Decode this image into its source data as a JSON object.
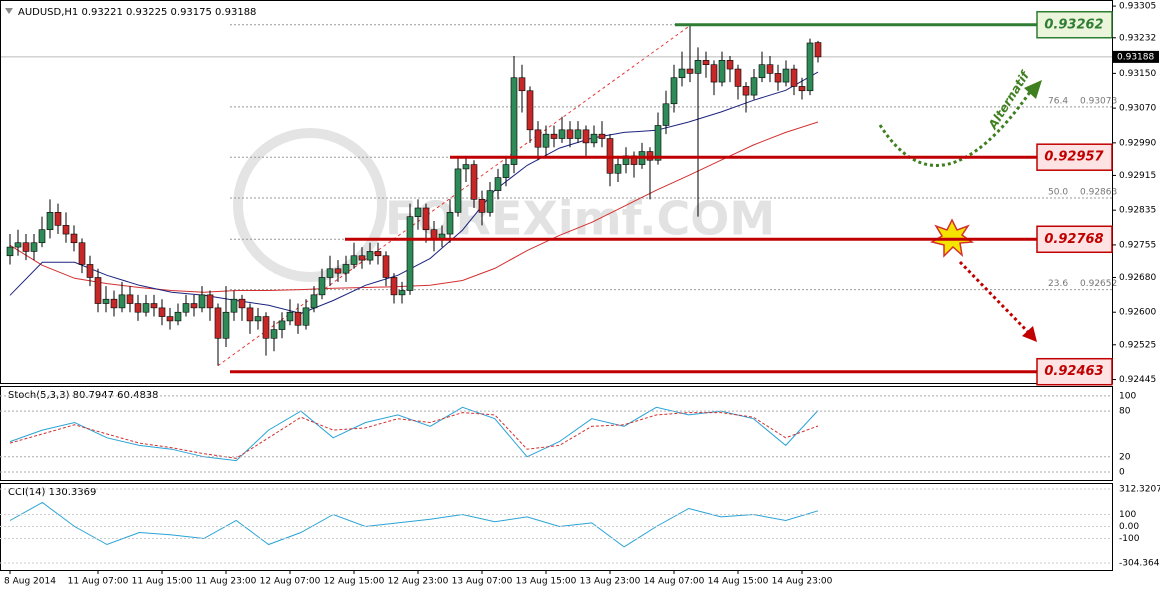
{
  "chart_data": {
    "type": "candlestick",
    "title": "AUDUSD,H1  0.93221 0.93225 0.93175 0.93188",
    "watermark": "FOREXimf.COM",
    "annotation": "Alternatif",
    "up_color": "#2e8b57",
    "down_color": "#c62828",
    "categories": [
      "8 Aug 2014",
      null,
      null,
      null,
      null,
      null,
      null,
      null,
      null,
      null,
      null,
      "11 Aug 07:00",
      null,
      null,
      null,
      null,
      null,
      null,
      null,
      "11 Aug 15:00",
      null,
      null,
      null,
      null,
      null,
      null,
      null,
      "11 Aug 23:00",
      null,
      null,
      null,
      null,
      null,
      null,
      null,
      "12 Aug 07:00",
      null,
      null,
      null,
      null,
      null,
      null,
      null,
      "12 Aug 15:00",
      null,
      null,
      null,
      null,
      null,
      null,
      null,
      "12 Aug 23:00",
      null,
      null,
      null,
      null,
      null,
      null,
      null,
      "13 Aug 07:00",
      null,
      null,
      null,
      null,
      null,
      null,
      null,
      "13 Aug 15:00",
      null,
      null,
      null,
      null,
      null,
      null,
      null,
      "13 Aug 23:00",
      null,
      null,
      null,
      null,
      null,
      null,
      null,
      "14 Aug 07:00",
      null,
      null,
      null,
      null,
      null,
      null,
      null,
      "14 Aug 15:00",
      null,
      null,
      null,
      null,
      null,
      null,
      null,
      "14 Aug 23:00",
      null,
      null
    ],
    "candles": [
      [
        0.9273,
        0.9278,
        0.9271,
        0.9275
      ],
      [
        0.9275,
        0.9279,
        0.9273,
        0.9276
      ],
      [
        0.9276,
        0.9278,
        0.9272,
        0.9274
      ],
      [
        0.9274,
        0.9278,
        0.9272,
        0.9276
      ],
      [
        0.9276,
        0.9282,
        0.9275,
        0.9279
      ],
      [
        0.9279,
        0.9286,
        0.9277,
        0.9283
      ],
      [
        0.9283,
        0.9285,
        0.9278,
        0.928
      ],
      [
        0.928,
        0.9283,
        0.9276,
        0.9278
      ],
      [
        0.9278,
        0.928,
        0.9274,
        0.9276
      ],
      [
        0.9276,
        0.9277,
        0.9269,
        0.9271
      ],
      [
        0.9271,
        0.9273,
        0.9266,
        0.9268
      ],
      [
        0.9268,
        0.927,
        0.926,
        0.9262
      ],
      [
        0.9262,
        0.9266,
        0.926,
        0.9263
      ],
      [
        0.9263,
        0.9265,
        0.9259,
        0.9261
      ],
      [
        0.9261,
        0.9267,
        0.926,
        0.9264
      ],
      [
        0.9264,
        0.9266,
        0.926,
        0.9262
      ],
      [
        0.9262,
        0.9264,
        0.9258,
        0.926
      ],
      [
        0.926,
        0.9264,
        0.9259,
        0.9262
      ],
      [
        0.9262,
        0.9264,
        0.9259,
        0.9261
      ],
      [
        0.9261,
        0.9263,
        0.9257,
        0.9259
      ],
      [
        0.9259,
        0.9261,
        0.9256,
        0.9258
      ],
      [
        0.9258,
        0.9262,
        0.9257,
        0.926
      ],
      [
        0.926,
        0.9264,
        0.9259,
        0.9262
      ],
      [
        0.9262,
        0.9264,
        0.9259,
        0.9261
      ],
      [
        0.9261,
        0.9266,
        0.926,
        0.9264
      ],
      [
        0.9264,
        0.9265,
        0.9258,
        0.9261
      ],
      [
        0.9261,
        0.9262,
        0.92477,
        0.9254
      ],
      [
        0.9254,
        0.9266,
        0.9252,
        0.926
      ],
      [
        0.926,
        0.9265,
        0.9258,
        0.9263
      ],
      [
        0.9263,
        0.9264,
        0.9258,
        0.9261
      ],
      [
        0.9261,
        0.9262,
        0.9255,
        0.9258
      ],
      [
        0.9258,
        0.9261,
        0.9256,
        0.9259
      ],
      [
        0.9259,
        0.926,
        0.925,
        0.9254
      ],
      [
        0.9254,
        0.9258,
        0.9251,
        0.9256
      ],
      [
        0.9256,
        0.926,
        0.9254,
        0.9258
      ],
      [
        0.9258,
        0.9263,
        0.9257,
        0.926
      ],
      [
        0.926,
        0.9262,
        0.9255,
        0.9257
      ],
      [
        0.9257,
        0.9263,
        0.9256,
        0.9261
      ],
      [
        0.9261,
        0.9266,
        0.926,
        0.9264
      ],
      [
        0.9264,
        0.927,
        0.9263,
        0.9268
      ],
      [
        0.9268,
        0.9273,
        0.9266,
        0.927
      ],
      [
        0.927,
        0.9272,
        0.9267,
        0.9269
      ],
      [
        0.9269,
        0.9273,
        0.9267,
        0.9271
      ],
      [
        0.9271,
        0.9276,
        0.927,
        0.9273
      ],
      [
        0.9273,
        0.9275,
        0.927,
        0.9272
      ],
      [
        0.9272,
        0.9276,
        0.9271,
        0.9274
      ],
      [
        0.9274,
        0.9276,
        0.9271,
        0.9273
      ],
      [
        0.9273,
        0.9274,
        0.9266,
        0.9268
      ],
      [
        0.9268,
        0.9269,
        0.9262,
        0.9264
      ],
      [
        0.9264,
        0.9267,
        0.9262,
        0.9265
      ],
      [
        0.9265,
        0.9285,
        0.9264,
        0.9282
      ],
      [
        0.9282,
        0.9286,
        0.9279,
        0.9284
      ],
      [
        0.9284,
        0.9285,
        0.9276,
        0.9279
      ],
      [
        0.9279,
        0.9281,
        0.9274,
        0.9277
      ],
      [
        0.9277,
        0.928,
        0.9275,
        0.9278
      ],
      [
        0.9278,
        0.9286,
        0.9276,
        0.9283
      ],
      [
        0.9283,
        0.9296,
        0.9282,
        0.9293
      ],
      [
        0.9293,
        0.9296,
        0.929,
        0.9294
      ],
      [
        0.9294,
        0.9295,
        0.9284,
        0.9286
      ],
      [
        0.9286,
        0.9288,
        0.928,
        0.9283
      ],
      [
        0.9283,
        0.929,
        0.9282,
        0.9288
      ],
      [
        0.9288,
        0.9293,
        0.9286,
        0.9291
      ],
      [
        0.9291,
        0.9296,
        0.9289,
        0.9294
      ],
      [
        0.9294,
        0.9319,
        0.9292,
        0.9314
      ],
      [
        0.9314,
        0.9317,
        0.9306,
        0.9311
      ],
      [
        0.9311,
        0.9312,
        0.9299,
        0.9302
      ],
      [
        0.9302,
        0.9304,
        0.9295,
        0.9298
      ],
      [
        0.9298,
        0.9303,
        0.9296,
        0.9301
      ],
      [
        0.9301,
        0.9303,
        0.9298,
        0.93
      ],
      [
        0.93,
        0.9305,
        0.9299,
        0.9302
      ],
      [
        0.9302,
        0.9304,
        0.9298,
        0.93
      ],
      [
        0.93,
        0.9304,
        0.9299,
        0.9302
      ],
      [
        0.9302,
        0.9303,
        0.9296,
        0.9299
      ],
      [
        0.9299,
        0.9303,
        0.9298,
        0.9301
      ],
      [
        0.9301,
        0.9304,
        0.9298,
        0.93
      ],
      [
        0.93,
        0.9301,
        0.9289,
        0.9292
      ],
      [
        0.9292,
        0.9296,
        0.929,
        0.9294
      ],
      [
        0.9294,
        0.9298,
        0.9292,
        0.9296
      ],
      [
        0.9296,
        0.9297,
        0.9291,
        0.9294
      ],
      [
        0.9294,
        0.9299,
        0.9293,
        0.9297
      ],
      [
        0.9297,
        0.9298,
        0.9286,
        0.9295
      ],
      [
        0.9295,
        0.9306,
        0.9294,
        0.9303
      ],
      [
        0.9303,
        0.9311,
        0.9301,
        0.9308
      ],
      [
        0.9308,
        0.9317,
        0.9306,
        0.9314
      ],
      [
        0.9314,
        0.932,
        0.9312,
        0.9316
      ],
      [
        0.9316,
        0.9326,
        0.9313,
        0.9315
      ],
      [
        0.9315,
        0.9321,
        0.9282,
        0.9318
      ],
      [
        0.9318,
        0.932,
        0.9314,
        0.9317
      ],
      [
        0.9317,
        0.9318,
        0.931,
        0.9313
      ],
      [
        0.9313,
        0.932,
        0.9312,
        0.9318
      ],
      [
        0.9318,
        0.9319,
        0.9313,
        0.9316
      ],
      [
        0.9316,
        0.9317,
        0.9309,
        0.9312
      ],
      [
        0.9312,
        0.9313,
        0.9306,
        0.931
      ],
      [
        0.931,
        0.9316,
        0.9309,
        0.9314
      ],
      [
        0.9314,
        0.932,
        0.9313,
        0.9317
      ],
      [
        0.9317,
        0.9319,
        0.9313,
        0.9315
      ],
      [
        0.9315,
        0.9317,
        0.9311,
        0.9313
      ],
      [
        0.9313,
        0.9318,
        0.9312,
        0.9316
      ],
      [
        0.9316,
        0.9317,
        0.931,
        0.9312
      ],
      [
        0.9312,
        0.9314,
        0.9309,
        0.9311
      ],
      [
        0.9311,
        0.9323,
        0.931,
        0.9322
      ],
      [
        0.93221,
        0.93225,
        0.93175,
        0.93188
      ]
    ],
    "ylim": [
      0.92437,
      0.93319
    ],
    "yticks": [
      0.93305,
      0.93232,
      {
        "value": 0.9315,
        "label": "0.93150"
      },
      {
        "value": 0.9307,
        "label": "0.93070"
      },
      {
        "value": 0.9299,
        "label": "0.92990"
      },
      0.92915,
      0.92835,
      0.92755,
      {
        "value": 0.9268,
        "label": "0.92680"
      },
      {
        "value": 0.926,
        "label": "0.92600"
      },
      0.92525,
      0.92445
    ],
    "current_price": 0.93188,
    "ma_fast": {
      "color": "#1a237e",
      "values": [
        0.92639,
        0.92715,
        0.92715,
        0.92685,
        0.92662,
        0.92646,
        0.92639,
        0.92627,
        0.92616,
        0.92597,
        0.92627,
        0.92662,
        0.92685,
        0.92724,
        0.92789,
        0.92881,
        0.92938,
        0.92978,
        0.93001,
        0.93014,
        0.93019,
        0.93038,
        0.93061,
        0.93088,
        0.93111,
        0.93153
      ]
    },
    "ma_slow": {
      "color": "#d32f2f",
      "values": [
        0.92754,
        0.92708,
        0.92678,
        0.92666,
        0.92657,
        0.9265,
        0.92646,
        0.9265,
        0.9265,
        0.92652,
        0.92655,
        0.92657,
        0.92659,
        0.92662,
        0.92673,
        0.92701,
        0.92742,
        0.92777,
        0.92807,
        0.92844,
        0.92881,
        0.92915,
        0.9295,
        0.92985,
        0.93014,
        0.93038
      ]
    },
    "levels": [
      {
        "value": 0.93262,
        "color": "#2e7d32",
        "fill": "#eaf5dc"
      },
      {
        "value": 0.92957,
        "color": "#c00000",
        "fill": "#fde3e3"
      },
      {
        "value": 0.92768,
        "color": "#c00000",
        "fill": "#fde3e3"
      },
      {
        "value": 0.92463,
        "color": "#c00000",
        "fill": "#fde3e3"
      }
    ],
    "fib": [
      {
        "level": 76.4,
        "price": 0.93073
      },
      {
        "level": {
          "value": 50,
          "label": "50.0"
        },
        "price": 0.92863
      },
      {
        "level": 23.6,
        "price": 0.92652
      }
    ],
    "stoch": {
      "label": "Stoch(5,3,3) 80.7947 60.4838",
      "ylim": [
        -10.5,
        113
      ],
      "yticks": [
        100,
        80,
        20,
        0
      ],
      "main": {
        "color": "#29a3d6",
        "values": [
          40,
          55,
          65,
          45,
          35,
          30,
          20,
          15,
          55,
          80,
          45,
          65,
          75,
          60,
          85,
          70,
          20,
          40,
          70,
          60,
          85,
          75,
          80,
          70,
          35,
          80.7947
        ]
      },
      "signal": {
        "color": "#d32f2f",
        "values": [
          38,
          50,
          62,
          50,
          38,
          32,
          24,
          18,
          45,
          72,
          55,
          58,
          70,
          65,
          78,
          75,
          30,
          35,
          60,
          62,
          75,
          78,
          78,
          72,
          45,
          60.4838
        ]
      }
    },
    "cci": {
      "label": "CCI(14) 130.3369",
      "ylim": [
        -362.7,
        362.3
      ],
      "yticks": [
        312.3207,
        100,
        {
          "value": 0,
          "label": "0.00"
        },
        -100,
        -304.3648
      ],
      "color": "#29a3d6",
      "values": [
        50,
        200,
        0,
        -150,
        -50,
        -70,
        -100,
        50,
        -150,
        -50,
        100,
        0,
        30,
        60,
        100,
        40,
        80,
        0,
        30,
        -170,
        0,
        150,
        80,
        100,
        50,
        130.3369
      ]
    }
  }
}
